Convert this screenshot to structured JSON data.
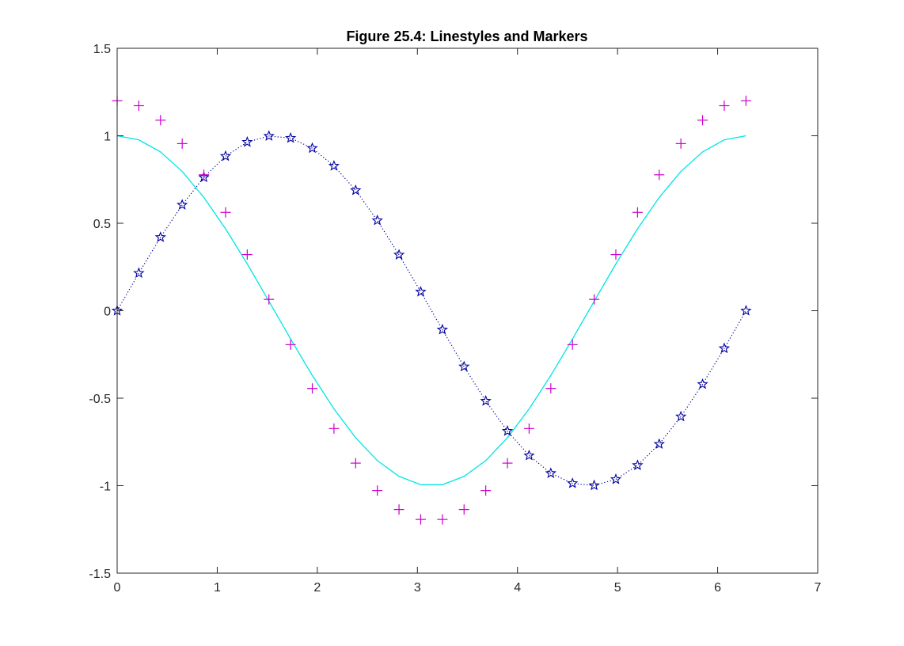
{
  "chart_data": {
    "type": "line",
    "title": "Figure 25.4: Linestyles and Markers",
    "xlabel": "",
    "ylabel": "",
    "xlim": [
      0,
      7
    ],
    "ylim": [
      -1.5,
      1.5
    ],
    "xticks": [
      "0",
      "1",
      "2",
      "3",
      "4",
      "5",
      "6",
      "7"
    ],
    "yticks": [
      "-1.5",
      "-1",
      "-0.5",
      "0",
      "0.5",
      "1",
      "1.5"
    ],
    "grid": false,
    "x": [
      0,
      0.2166,
      0.4333,
      0.6499,
      0.8666,
      1.0832,
      1.2999,
      1.5165,
      1.7332,
      1.9498,
      2.1665,
      2.3831,
      2.5998,
      2.8164,
      3.0331,
      3.2497,
      3.4664,
      3.683,
      3.8997,
      4.1163,
      4.333,
      4.5496,
      4.7663,
      4.9829,
      5.1996,
      5.4162,
      5.6329,
      5.8495,
      6.0662,
      6.2832
    ],
    "series": [
      {
        "style": "solid line",
        "color": "#00e5e5",
        "values": [
          1.0,
          0.9766,
          0.9076,
          0.7961,
          0.6474,
          0.4684,
          0.2675,
          0.0541,
          -0.1616,
          -0.3701,
          -0.5612,
          -0.726,
          -0.8565,
          -0.9468,
          -0.9941,
          -0.9941,
          -0.9468,
          -0.8565,
          -0.726,
          -0.5612,
          -0.3701,
          -0.1616,
          0.0541,
          0.2675,
          0.4684,
          0.6474,
          0.7961,
          0.9076,
          0.9766,
          1.0
        ]
      },
      {
        "style": "dotted line with star markers",
        "color": "#0000a0",
        "values": [
          0,
          0.215,
          0.4199,
          0.6051,
          0.7622,
          0.8835,
          0.9638,
          0.9985,
          0.9868,
          0.929,
          0.8277,
          0.688,
          0.5159,
          0.3195,
          0.1082,
          -0.1082,
          -0.3195,
          -0.5159,
          -0.688,
          -0.8277,
          -0.929,
          -0.9868,
          -0.9985,
          -0.9638,
          -0.8835,
          -0.7622,
          -0.6051,
          -0.4199,
          -0.215,
          0
        ]
      },
      {
        "style": "plus markers",
        "color": "#cc00cc",
        "values": [
          1.2,
          1.1719,
          1.0891,
          0.9553,
          0.7769,
          0.5621,
          0.321,
          0.0649,
          -0.1939,
          -0.4441,
          -0.6734,
          -0.8712,
          -1.0278,
          -1.1362,
          -1.1929,
          -1.1929,
          -1.1362,
          -1.0278,
          -0.8712,
          -0.6734,
          -0.4441,
          -0.1939,
          0.0649,
          0.321,
          0.5621,
          0.7769,
          0.9553,
          1.0891,
          1.1719,
          1.2
        ]
      }
    ]
  }
}
